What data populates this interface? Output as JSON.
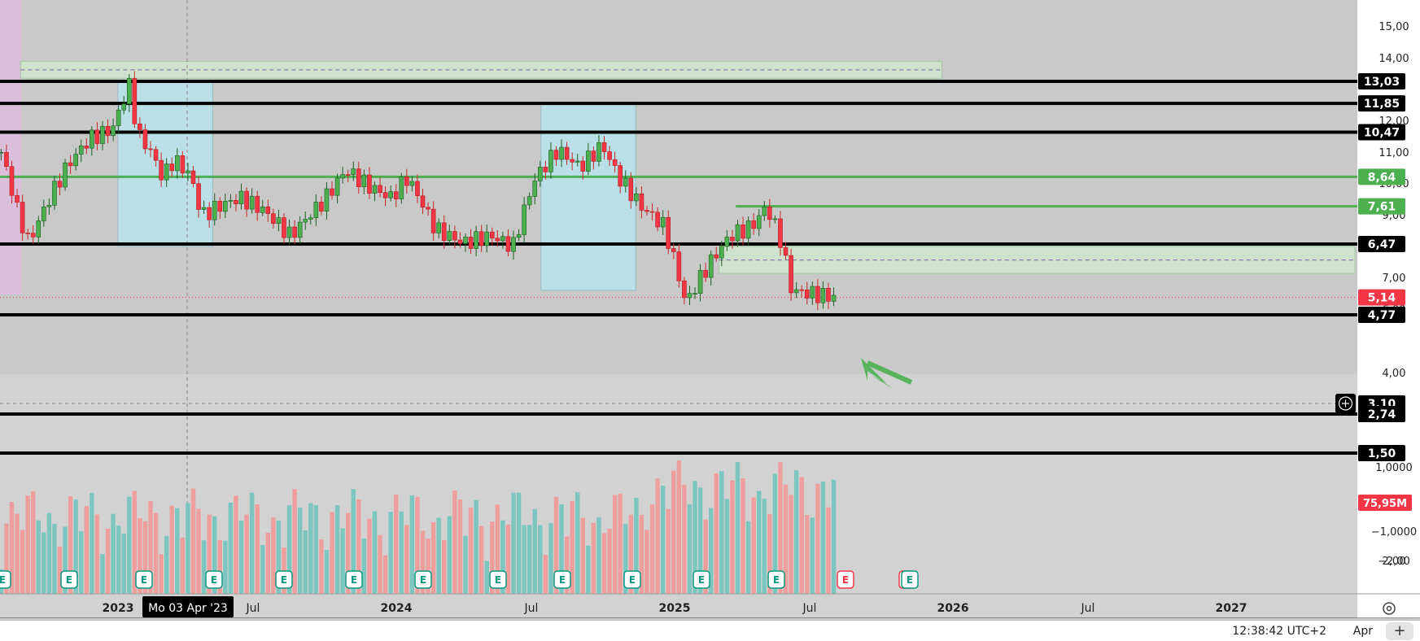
{
  "chart_data": {
    "type": "candlestick",
    "x_axis": {
      "labels": [
        "2023",
        "Jul",
        "2024",
        "Jul",
        "2025",
        "Jul",
        "2026",
        "Jul",
        "2027"
      ],
      "crosshair_label": "Mo 03 Apr '23"
    },
    "y_axis": {
      "scale": "log",
      "ticks": [
        "15,00",
        "14,00",
        "12,00",
        "11,00",
        "10,00",
        "9,00",
        "8,00",
        "7,00",
        "6,00",
        "4,00",
        "2,00"
      ],
      "volume_ticks": [
        "1,0000",
        "−1,0000",
        "−2,00"
      ]
    },
    "price_levels": [
      {
        "label": "13,03",
        "value": 13.03,
        "color": "#000000"
      },
      {
        "label": "11,85",
        "value": 11.85,
        "color": "#000000"
      },
      {
        "label": "10,47",
        "value": 10.47,
        "color": "#000000"
      },
      {
        "label": "8,64",
        "value": 8.64,
        "color": "#4caf50"
      },
      {
        "label": "7,61",
        "value": 7.61,
        "color": "#4caf50"
      },
      {
        "label": "6,47",
        "value": 6.47,
        "color": "#000000"
      },
      {
        "label": "5,14",
        "value": 5.14,
        "color": "#f23645"
      },
      {
        "label": "4,77",
        "value": 4.77,
        "color": "#000000"
      },
      {
        "label": "3,10",
        "value": 3.1,
        "color": "#000000"
      },
      {
        "label": "2,74",
        "value": 2.74,
        "color": "#000000"
      },
      {
        "label": "1,50",
        "value": 1.5,
        "color": "#000000"
      }
    ],
    "volume_label": "75,95M",
    "earnings_markers": [
      "E",
      "E",
      "E",
      "E",
      "E",
      "E",
      "E",
      "E",
      "E",
      "E",
      "E",
      "E",
      "E",
      "E",
      "E"
    ],
    "zones": [
      {
        "type": "supply",
        "from_price": 13.2,
        "to_price": 14.2,
        "color": "#cfe5cf"
      },
      {
        "type": "demand",
        "from_price": 5.7,
        "to_price": 6.4,
        "color": "#cfe5cf"
      },
      {
        "type": "highlight",
        "from_price": 6.4,
        "to_price": 13.1,
        "period": "Jan 2023 - May 2023",
        "color": "#b8e3ec"
      },
      {
        "type": "highlight",
        "from_price": 5.3,
        "to_price": 11.9,
        "period": "Oct 2024 - Jan 2025",
        "color": "#b8e3ec"
      }
    ],
    "annotation": {
      "type": "arrow",
      "color": "#4caf50",
      "points_to": 4.77
    },
    "colors": {
      "up": "#4caf50",
      "down": "#f23645",
      "up_volume": "#7cc6bf",
      "down_volume": "#ef9e9e"
    }
  },
  "status_bar": {
    "time": "12:38:42 UTC+2",
    "app": "Apr",
    "plus": "+"
  }
}
